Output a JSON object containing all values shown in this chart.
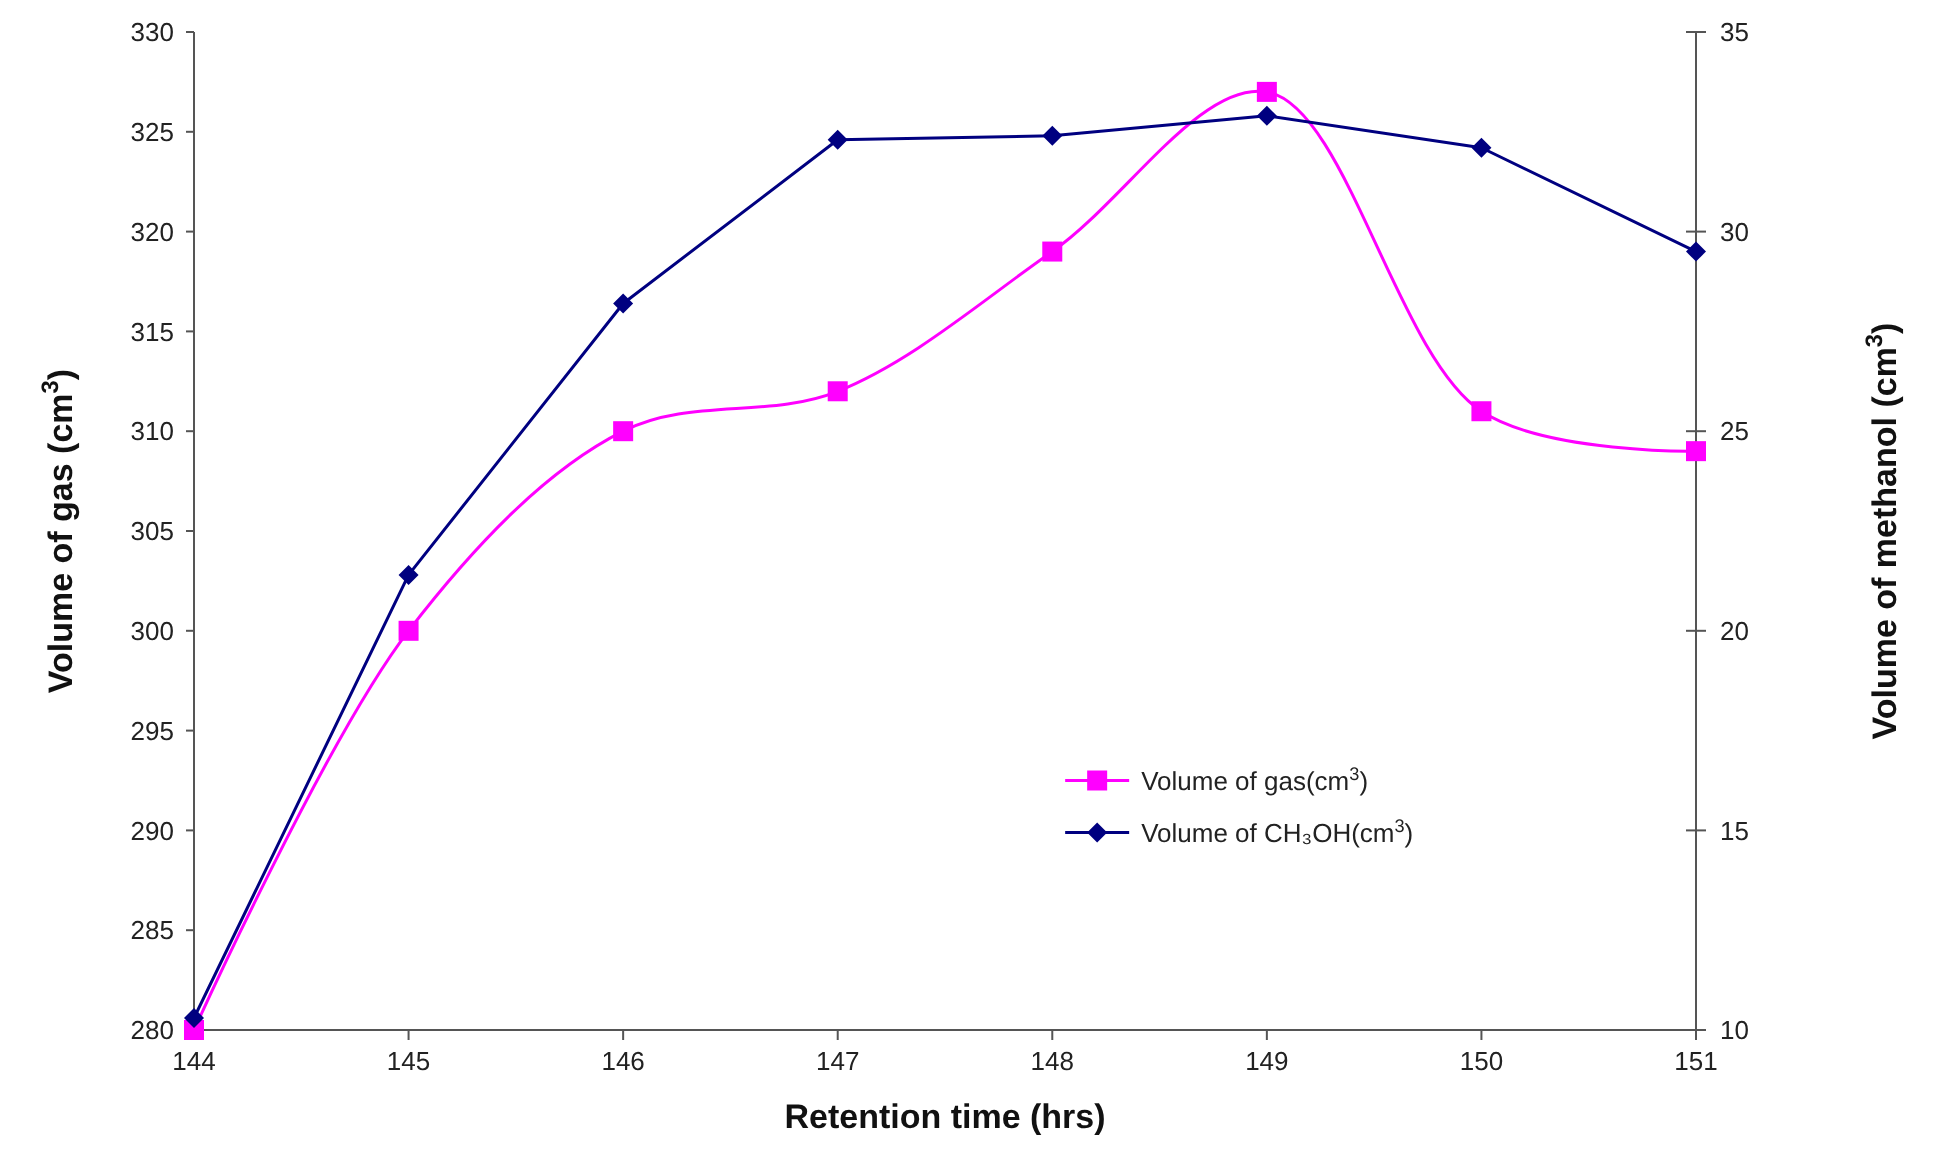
{
  "chart_data": {
    "type": "line",
    "xlabel": "Retention time (hrs)",
    "ylabel": "Volume of gas (cm$^{3}$)",
    "y2label": "Volume of methanol (cm$^{3}$)",
    "x": [
      144,
      145,
      146,
      147,
      148,
      149,
      150,
      151
    ],
    "xlim": [
      144,
      151
    ],
    "xticks": [
      144,
      145,
      146,
      147,
      148,
      149,
      150,
      151
    ],
    "ylim": [
      280,
      330
    ],
    "yticks": [
      280,
      285,
      290,
      295,
      300,
      305,
      310,
      315,
      320,
      325,
      330
    ],
    "y2lim": [
      10,
      35
    ],
    "y2ticks": [
      10,
      15,
      20,
      25,
      30,
      35
    ],
    "grid": false,
    "legend": "bottom right",
    "series": [
      {
        "name": "Volume of gas(cm$^{3}$)",
        "color": "#ff00ff",
        "marker": "square",
        "values": [
          280,
          300,
          310,
          312,
          319,
          327,
          311,
          309
        ]
      },
      {
        "name": "Volume of CH₃OH(cm$^{3}$)",
        "color": "#000080",
        "marker": "diamond",
        "axis": "y2",
        "values": [
          10.3,
          21.4,
          28.2,
          32.3,
          32.4,
          32.9,
          32.1,
          29.5
        ]
      }
    ]
  }
}
